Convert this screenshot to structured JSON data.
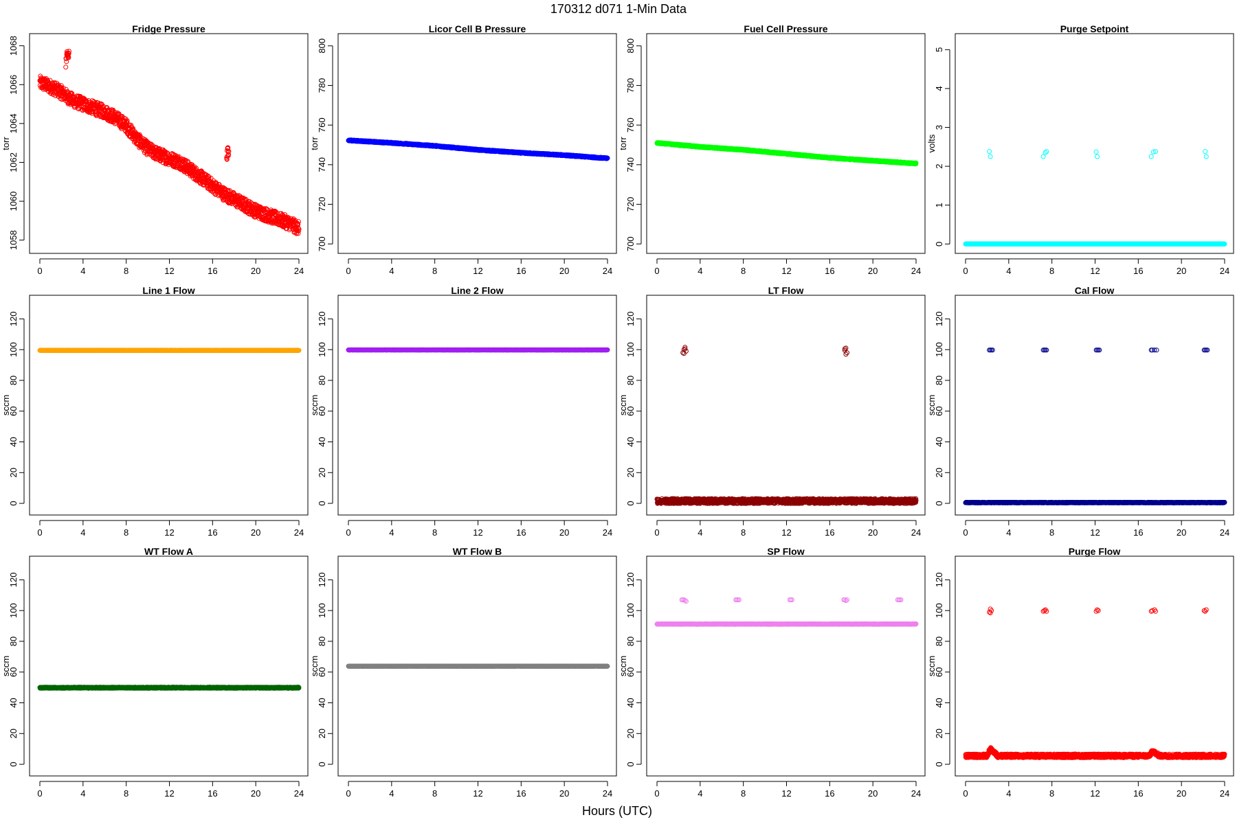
{
  "figure": {
    "title": "170312   d071   1-Min Data",
    "xlabel": "Hours (UTC)"
  },
  "chart_data": [
    {
      "type": "scatter",
      "title": "Fridge Pressure",
      "ylabel": "torr",
      "xlim": [
        0,
        24
      ],
      "xticks": [
        0,
        4,
        8,
        12,
        16,
        20,
        24
      ],
      "ylim": [
        1057.6,
        1068.2
      ],
      "yticks": [
        1058,
        1060,
        1062,
        1064,
        1066,
        1068
      ],
      "color": "#ff0000",
      "marker": "open-circle",
      "noise": 0.35,
      "segments": [
        {
          "x": [
            0,
            1,
            2,
            3,
            4,
            5,
            6,
            7,
            8,
            9,
            10,
            11,
            12,
            13,
            14,
            15,
            16,
            17,
            18,
            19,
            20,
            21,
            22,
            23,
            24
          ],
          "y": [
            1066.1,
            1065.9,
            1065.6,
            1065.2,
            1065.0,
            1064.8,
            1064.6,
            1064.3,
            1063.9,
            1063.2,
            1062.7,
            1062.4,
            1062.2,
            1062.0,
            1061.6,
            1061.2,
            1060.8,
            1060.4,
            1060.1,
            1059.8,
            1059.5,
            1059.3,
            1059.1,
            1058.9,
            1058.6
          ]
        },
        {
          "x": [
            2.4,
            2.7
          ],
          "y": [
            1067.2,
            1067.6
          ]
        },
        {
          "x": [
            17.3,
            17.5
          ],
          "y": [
            1062.2,
            1062.8
          ]
        }
      ]
    },
    {
      "type": "scatter",
      "title": "Licor Cell B Pressure",
      "ylabel": "torr",
      "xlim": [
        0,
        24
      ],
      "xticks": [
        0,
        4,
        8,
        12,
        16,
        20,
        24
      ],
      "ylim": [
        698,
        802
      ],
      "yticks": [
        700,
        720,
        740,
        760,
        780,
        800
      ],
      "color": "#0000ff",
      "marker": "open-circle",
      "noise": 0.3,
      "segments": [
        {
          "x": [
            0,
            4,
            8,
            12,
            16,
            20,
            24
          ],
          "y": [
            752.3,
            751.0,
            749.5,
            747.5,
            746.0,
            744.8,
            743.2
          ]
        }
      ]
    },
    {
      "type": "scatter",
      "title": "Fuel Cell Pressure",
      "ylabel": "torr",
      "xlim": [
        0,
        24
      ],
      "xticks": [
        0,
        4,
        8,
        12,
        16,
        20,
        24
      ],
      "ylim": [
        698,
        802
      ],
      "yticks": [
        700,
        720,
        740,
        760,
        780,
        800
      ],
      "color": "#00ff00",
      "marker": "open-circle",
      "noise": 0.3,
      "segments": [
        {
          "x": [
            0,
            4,
            8,
            12,
            16,
            20,
            24
          ],
          "y": [
            751.0,
            749.0,
            747.5,
            745.5,
            743.5,
            742.0,
            740.6
          ]
        }
      ]
    },
    {
      "type": "scatter",
      "title": "Purge Setpoint",
      "ylabel": "volts",
      "xlim": [
        0,
        24
      ],
      "xticks": [
        0,
        4,
        8,
        12,
        16,
        20,
        24
      ],
      "ylim": [
        -0.1,
        5.2
      ],
      "yticks": [
        0,
        1,
        2,
        3,
        4,
        5
      ],
      "color": "#00ffff",
      "marker": "open-circle",
      "noise": 0,
      "segments": [
        {
          "x": [
            0,
            24
          ],
          "y": [
            0,
            0
          ]
        }
      ],
      "points": {
        "x": [
          2.2,
          2.3,
          7.2,
          7.4,
          7.5,
          12.1,
          12.2,
          17.2,
          17.4,
          17.6,
          22.2,
          22.3
        ],
        "y": [
          2.38,
          2.25,
          2.25,
          2.35,
          2.38,
          2.37,
          2.25,
          2.25,
          2.37,
          2.38,
          2.38,
          2.25
        ]
      }
    },
    {
      "type": "scatter",
      "title": "Line 1 Flow",
      "ylabel": "sccm",
      "xlim": [
        0,
        24
      ],
      "xticks": [
        0,
        4,
        8,
        12,
        16,
        20,
        24
      ],
      "ylim": [
        -4,
        130
      ],
      "yticks": [
        0,
        20,
        40,
        60,
        80,
        100,
        120
      ],
      "color": "#ffa500",
      "marker": "open-circle",
      "noise": 0.1,
      "segments": [
        {
          "x": [
            0,
            24
          ],
          "y": [
            99.5,
            99.5
          ]
        }
      ]
    },
    {
      "type": "scatter",
      "title": "Line 2 Flow",
      "ylabel": "sccm",
      "xlim": [
        0,
        24
      ],
      "xticks": [
        0,
        4,
        8,
        12,
        16,
        20,
        24
      ],
      "ylim": [
        -4,
        130
      ],
      "yticks": [
        0,
        20,
        40,
        60,
        80,
        100,
        120
      ],
      "color": "#a020f0",
      "marker": "open-circle",
      "noise": 0.1,
      "segments": [
        {
          "x": [
            0,
            24
          ],
          "y": [
            99.8,
            99.8
          ]
        }
      ]
    },
    {
      "type": "scatter",
      "title": "LT Flow",
      "ylabel": "sccm",
      "xlim": [
        0,
        24
      ],
      "xticks": [
        0,
        4,
        8,
        12,
        16,
        20,
        24
      ],
      "ylim": [
        -4,
        130
      ],
      "yticks": [
        0,
        20,
        40,
        60,
        80,
        100,
        120
      ],
      "color": "#8b0000",
      "marker": "open-circle",
      "noise": 1.6,
      "segments": [
        {
          "x": [
            0,
            24
          ],
          "y": [
            1.5,
            1.5
          ]
        }
      ],
      "points": {
        "x": [
          2.4,
          2.5,
          2.6,
          2.7,
          2.5,
          2.6,
          17.4,
          17.5,
          17.6,
          17.5,
          17.4
        ],
        "y": [
          98,
          100,
          101.5,
          99,
          97.5,
          100.5,
          99.5,
          101,
          98,
          97,
          100.5
        ]
      }
    },
    {
      "type": "scatter",
      "title": "Cal Flow",
      "ylabel": "sccm",
      "xlim": [
        0,
        24
      ],
      "xticks": [
        0,
        4,
        8,
        12,
        16,
        20,
        24
      ],
      "ylim": [
        -4,
        130
      ],
      "yticks": [
        0,
        20,
        40,
        60,
        80,
        100,
        120
      ],
      "color": "#00008b",
      "marker": "open-circle",
      "noise": 0.2,
      "segments": [
        {
          "x": [
            0,
            24
          ],
          "y": [
            0.5,
            0.5
          ]
        }
      ],
      "points": {
        "x": [
          2.2,
          2.3,
          2.4,
          2.5,
          7.2,
          7.3,
          7.4,
          7.5,
          12.1,
          12.2,
          12.3,
          12.4,
          17.2,
          17.3,
          17.5,
          17.7,
          22.1,
          22.2,
          22.3,
          22.4
        ],
        "y": [
          99.7,
          99.7,
          99.7,
          99.7,
          99.7,
          99.7,
          99.7,
          99.7,
          99.7,
          99.7,
          99.7,
          99.7,
          99.7,
          99.7,
          99.7,
          99.7,
          99.7,
          99.7,
          99.7,
          99.7
        ]
      }
    },
    {
      "type": "scatter",
      "title": "WT Flow A",
      "ylabel": "sccm",
      "xlim": [
        0,
        24
      ],
      "xticks": [
        0,
        4,
        8,
        12,
        16,
        20,
        24
      ],
      "ylim": [
        -4,
        130
      ],
      "yticks": [
        0,
        20,
        40,
        60,
        80,
        100,
        120
      ],
      "color": "#006400",
      "marker": "open-circle",
      "noise": 0.35,
      "segments": [
        {
          "x": [
            0,
            24
          ],
          "y": [
            49.8,
            49.8
          ]
        }
      ]
    },
    {
      "type": "scatter",
      "title": "WT Flow B",
      "ylabel": "sccm",
      "xlim": [
        0,
        24
      ],
      "xticks": [
        0,
        4,
        8,
        12,
        16,
        20,
        24
      ],
      "ylim": [
        -4,
        130
      ],
      "yticks": [
        0,
        20,
        40,
        60,
        80,
        100,
        120
      ],
      "color": "#808080",
      "marker": "open-circle",
      "noise": 0.1,
      "segments": [
        {
          "x": [
            0,
            24
          ],
          "y": [
            63.8,
            63.8
          ]
        }
      ]
    },
    {
      "type": "scatter",
      "title": "SP Flow",
      "ylabel": "sccm",
      "xlim": [
        0,
        24
      ],
      "xticks": [
        0,
        4,
        8,
        12,
        16,
        20,
        24
      ],
      "ylim": [
        -4,
        130
      ],
      "yticks": [
        0,
        20,
        40,
        60,
        80,
        100,
        120
      ],
      "color": "#ee82ee",
      "marker": "open-circle",
      "noise": 0.15,
      "segments": [
        {
          "x": [
            0,
            24
          ],
          "y": [
            91.2,
            91.2
          ]
        }
      ],
      "points": {
        "x": [
          2.3,
          2.4,
          2.5,
          2.6,
          2.7,
          7.3,
          7.4,
          7.5,
          7.6,
          12.3,
          12.4,
          12.5,
          17.3,
          17.4,
          17.5,
          17.6,
          22.3,
          22.4,
          22.5,
          22.6
        ],
        "y": [
          107,
          107,
          107,
          106.5,
          106,
          107,
          107,
          107,
          107,
          107,
          107,
          107,
          107,
          107,
          106.5,
          107,
          107,
          107,
          107,
          107
        ]
      }
    },
    {
      "type": "scatter",
      "title": "Purge Flow",
      "ylabel": "sccm",
      "xlim": [
        0,
        24
      ],
      "xticks": [
        0,
        4,
        8,
        12,
        16,
        20,
        24
      ],
      "ylim": [
        -4,
        130
      ],
      "yticks": [
        0,
        20,
        40,
        60,
        80,
        100,
        120
      ],
      "color": "#ff0000",
      "marker": "open-circle",
      "noise": 1.2,
      "segments": [
        {
          "x": [
            0,
            2,
            2.3,
            2.6,
            3,
            17,
            17.4,
            17.6,
            18,
            24
          ],
          "y": [
            5.5,
            5.5,
            10,
            8,
            5.5,
            5.5,
            9,
            7,
            5.5,
            5.5
          ]
        }
      ],
      "points": {
        "x": [
          2.2,
          2.3,
          2.4,
          2.3,
          7.2,
          7.3,
          7.4,
          7.5,
          12.1,
          12.2,
          12.3,
          17.2,
          17.3,
          17.5,
          17.6,
          22.1,
          22.2,
          22.3
        ],
        "y": [
          99,
          101,
          100,
          98.5,
          99.5,
          100,
          100.5,
          99.5,
          99.5,
          100.5,
          100,
          99.5,
          100,
          100.5,
          99.5,
          100,
          99.5,
          100.5
        ]
      }
    }
  ]
}
